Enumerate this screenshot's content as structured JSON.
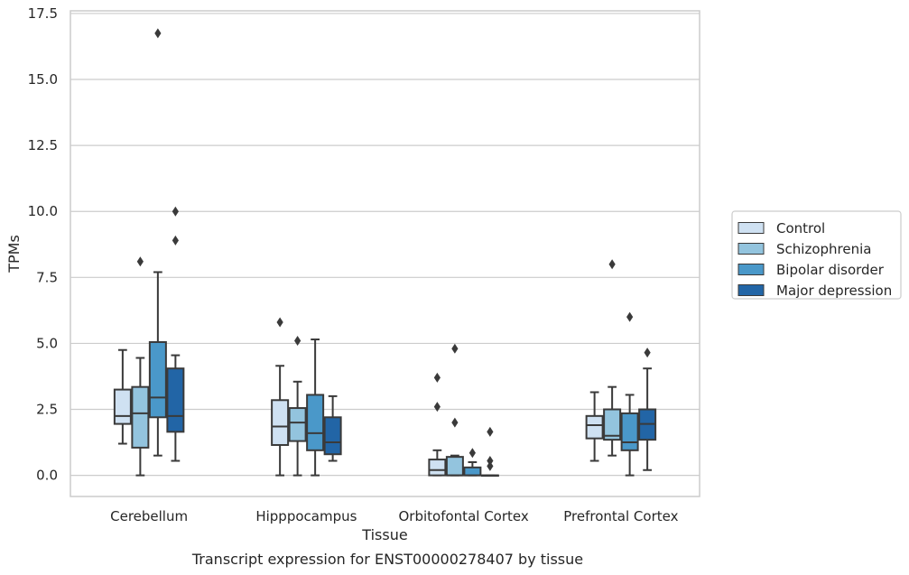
{
  "chart_data": {
    "type": "boxplot",
    "xlabel": "Tissue",
    "ylabel": "TPMs",
    "caption": "Transcript expression for ENST00000278407 by tissue",
    "ylim": [
      -0.8,
      17.6
    ],
    "yticks": [
      "0.0",
      "2.5",
      "5.0",
      "7.5",
      "10.0",
      "12.5",
      "15.0",
      "17.5"
    ],
    "ytick_values": [
      0,
      2.5,
      5,
      7.5,
      10,
      12.5,
      15,
      17.5
    ],
    "grid": "horizontal",
    "legend_position": "right",
    "categories": [
      "Cerebellum",
      "Hipppocampus",
      "Orbitofontal Cortex",
      "Prefrontal Cortex"
    ],
    "series": [
      {
        "name": "Control",
        "color": "#cfe1f2",
        "boxes": [
          {
            "whislo": 1.2,
            "q1": 1.95,
            "med": 2.25,
            "q3": 3.25,
            "whishi": 4.75,
            "fliers": []
          },
          {
            "whislo": 0.0,
            "q1": 1.15,
            "med": 1.85,
            "q3": 2.85,
            "whishi": 4.15,
            "fliers": [
              5.8
            ]
          },
          {
            "whislo": 0.0,
            "q1": 0.0,
            "med": 0.2,
            "q3": 0.6,
            "whishi": 0.95,
            "fliers": [
              3.7,
              2.6
            ]
          },
          {
            "whislo": 0.55,
            "q1": 1.4,
            "med": 1.9,
            "q3": 2.25,
            "whishi": 3.15,
            "fliers": []
          }
        ]
      },
      {
        "name": "Schizophrenia",
        "color": "#93c4de",
        "boxes": [
          {
            "whislo": 0.0,
            "q1": 1.05,
            "med": 2.35,
            "q3": 3.35,
            "whishi": 4.45,
            "fliers": [
              8.1
            ]
          },
          {
            "whislo": 0.0,
            "q1": 1.3,
            "med": 2.0,
            "q3": 2.55,
            "whishi": 3.55,
            "fliers": [
              5.1
            ]
          },
          {
            "whislo": 0.0,
            "q1": 0.0,
            "med": 0.0,
            "q3": 0.7,
            "whishi": 0.75,
            "fliers": [
              4.8,
              2.0
            ]
          },
          {
            "whislo": 0.75,
            "q1": 1.35,
            "med": 1.5,
            "q3": 2.5,
            "whishi": 3.35,
            "fliers": [
              8.0
            ]
          }
        ]
      },
      {
        "name": "Bipolar disorder",
        "color": "#4a98c9",
        "boxes": [
          {
            "whislo": 0.75,
            "q1": 2.2,
            "med": 2.95,
            "q3": 5.05,
            "whishi": 7.7,
            "fliers": [
              16.75
            ]
          },
          {
            "whislo": 0.0,
            "q1": 0.95,
            "med": 1.6,
            "q3": 3.05,
            "whishi": 5.15,
            "fliers": []
          },
          {
            "whislo": 0.0,
            "q1": 0.0,
            "med": 0.0,
            "q3": 0.3,
            "whishi": 0.5,
            "fliers": [
              0.85
            ]
          },
          {
            "whislo": 0.0,
            "q1": 0.95,
            "med": 1.25,
            "q3": 2.35,
            "whishi": 3.05,
            "fliers": [
              6.0
            ]
          }
        ]
      },
      {
        "name": "Major depression",
        "color": "#2265a6",
        "boxes": [
          {
            "whislo": 0.55,
            "q1": 1.65,
            "med": 2.25,
            "q3": 4.05,
            "whishi": 4.55,
            "fliers": [
              10.0,
              8.9
            ]
          },
          {
            "whislo": 0.55,
            "q1": 0.8,
            "med": 1.25,
            "q3": 2.2,
            "whishi": 3.0,
            "fliers": []
          },
          {
            "whislo": 0.0,
            "q1": 0.0,
            "med": 0.0,
            "q3": 0.0,
            "whishi": 0.0,
            "fliers": [
              1.65,
              0.55,
              0.35
            ]
          },
          {
            "whislo": 0.2,
            "q1": 1.35,
            "med": 1.95,
            "q3": 2.5,
            "whishi": 4.05,
            "fliers": [
              4.65
            ]
          }
        ]
      }
    ]
  }
}
